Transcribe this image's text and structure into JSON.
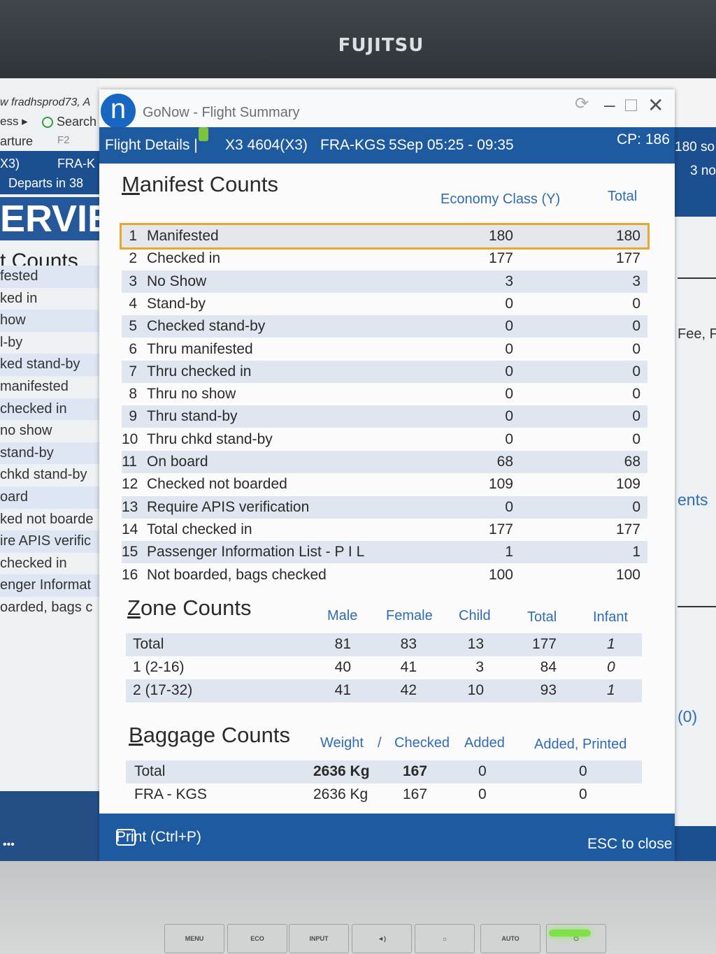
{
  "monitor": {
    "brand": "FUJITSU",
    "buttons": [
      "MENU",
      "ECO",
      "INPUT",
      "◄)",
      "☼",
      "AUTO",
      "⏻"
    ]
  },
  "background_app": {
    "lines": [
      "w  fradhsprod73, A",
      "ess ▸",
      "Search",
      "arture",
      "F2",
      "X3)",
      "FRA-K",
      "Departs in 38"
    ],
    "big_text": "ERVIE",
    "heading": "t Counts",
    "rows": [
      "fested",
      "ked in",
      "how",
      "l-by",
      "ked stand-by",
      "manifested",
      "checked in",
      "no show",
      "stand-by",
      "chkd stand-by",
      "oard",
      "ked not boarde",
      "ire APIS verific",
      "checked in",
      "enger Informat",
      "oarded, bags c"
    ],
    "right": {
      "top": "180 so",
      "sub": "3 no",
      "fee": "Fee, F",
      "ents": "ents",
      "zero": "(0)"
    }
  },
  "window": {
    "title": "GoNow - Flight Summary",
    "controls": {
      "refresh": "⟳",
      "minimize": "–",
      "maximize": "□",
      "close": "✕"
    },
    "details": {
      "label": "Flight Details |",
      "flight": "X3 4604(X3)",
      "route": "FRA-KGS",
      "schedule": "5Sep 05:25 - 09:35",
      "cp": "CP: 186"
    },
    "manifest": {
      "title": "Manifest Counts",
      "columns": [
        "Economy Class (Y)",
        "Total"
      ],
      "rows": [
        {
          "n": "1",
          "label": "Manifested",
          "y": "180",
          "total": "180"
        },
        {
          "n": "2",
          "label": "Checked in",
          "y": "177",
          "total": "177"
        },
        {
          "n": "3",
          "label": "No Show",
          "y": "3",
          "total": "3"
        },
        {
          "n": "4",
          "label": "Stand-by",
          "y": "0",
          "total": "0"
        },
        {
          "n": "5",
          "label": "Checked stand-by",
          "y": "0",
          "total": "0"
        },
        {
          "n": "6",
          "label": "Thru manifested",
          "y": "0",
          "total": "0"
        },
        {
          "n": "7",
          "label": "Thru checked in",
          "y": "0",
          "total": "0"
        },
        {
          "n": "8",
          "label": "Thru no show",
          "y": "0",
          "total": "0"
        },
        {
          "n": "9",
          "label": "Thru stand-by",
          "y": "0",
          "total": "0"
        },
        {
          "n": "10",
          "label": "Thru chkd stand-by",
          "y": "0",
          "total": "0"
        },
        {
          "n": "11",
          "label": "On board",
          "y": "68",
          "total": "68"
        },
        {
          "n": "12",
          "label": "Checked not boarded",
          "y": "109",
          "total": "109"
        },
        {
          "n": "13",
          "label": "Require APIS verification",
          "y": "0",
          "total": "0"
        },
        {
          "n": "14",
          "label": "Total checked in",
          "y": "177",
          "total": "177"
        },
        {
          "n": "15",
          "label": "Passenger Information List - P I L",
          "y": "1",
          "total": "1"
        },
        {
          "n": "16",
          "label": "Not boarded, bags checked",
          "y": "100",
          "total": "100"
        }
      ]
    },
    "zone": {
      "title": "Zone Counts",
      "columns": [
        "Male",
        "Female",
        "Child",
        "Total",
        "Infant"
      ],
      "rows": [
        {
          "label": "Total",
          "male": "81",
          "female": "83",
          "child": "13",
          "total": "177",
          "infant": "1"
        },
        {
          "label": "1 (2-16)",
          "male": "40",
          "female": "41",
          "child": "3",
          "total": "84",
          "infant": "0"
        },
        {
          "label": "2 (17-32)",
          "male": "41",
          "female": "42",
          "child": "10",
          "total": "93",
          "infant": "1"
        }
      ]
    },
    "baggage": {
      "title": "Baggage Counts",
      "columns": [
        "Weight",
        "/",
        "Checked",
        "Added",
        "Added, Printed"
      ],
      "rows": [
        {
          "label": "Total",
          "weight": "2636 Kg",
          "checked": "167",
          "added": "0",
          "printed": "0"
        },
        {
          "label": "FRA - KGS",
          "weight": "2636 Kg",
          "checked": "167",
          "added": "0",
          "printed": "0"
        }
      ]
    },
    "footer": {
      "print": "Print (Ctrl+P)",
      "close": "ESC to close"
    }
  }
}
